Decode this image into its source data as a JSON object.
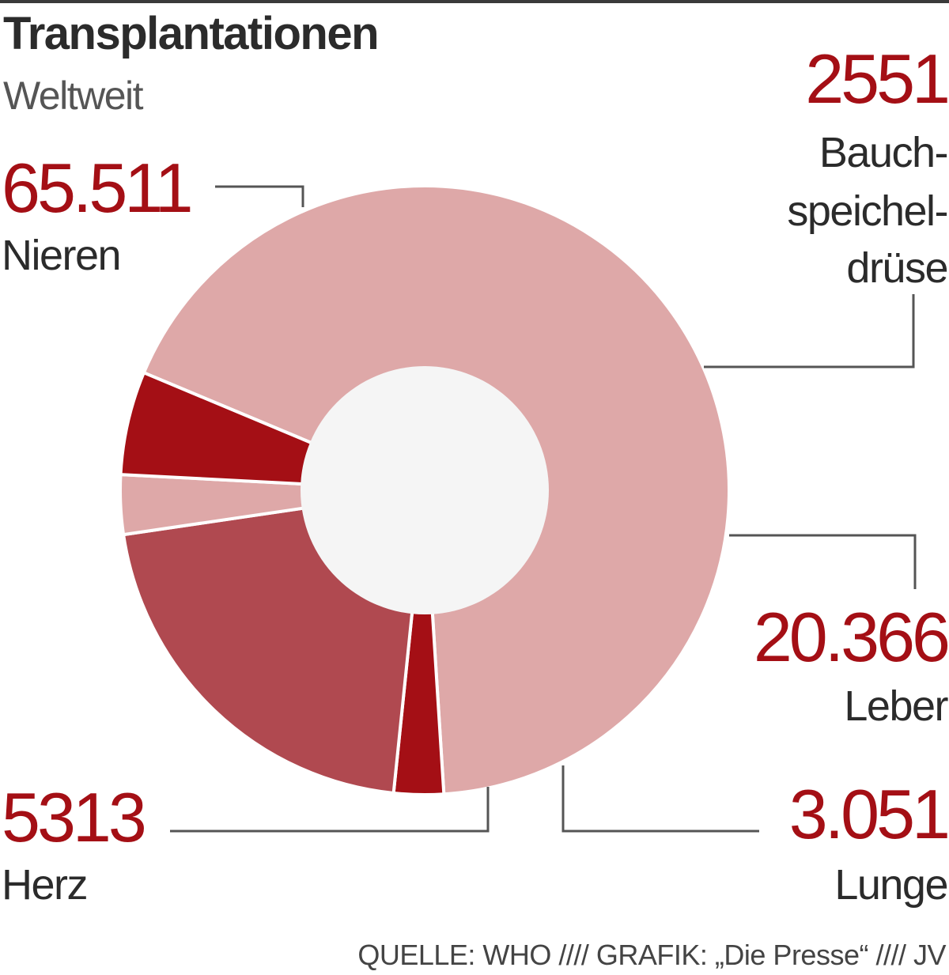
{
  "chart_data": {
    "type": "pie",
    "variant": "donut",
    "title": "Transplantationen",
    "subtitle": "Weltweit",
    "slices": [
      {
        "label": "Nieren",
        "value": 65511,
        "value_text": "65.511",
        "color": "#dea8a8"
      },
      {
        "label": "Bauch-speichel-drüse",
        "value": 2551,
        "value_text": "2551",
        "color": "#a40f15"
      },
      {
        "label": "Leber",
        "value": 20366,
        "value_text": "20.366",
        "color": "#b04950"
      },
      {
        "label": "Lunge",
        "value": 3051,
        "value_text": "3.051",
        "color": "#dea8a8"
      },
      {
        "label": "Herz",
        "value": 5313,
        "value_text": "5313",
        "color": "#a40f15"
      }
    ],
    "center_color": "#f5f5f5",
    "legend": "none"
  },
  "labels": {
    "nieren": {
      "value": "65.511",
      "name": "Nieren"
    },
    "bauch": {
      "value": "2551",
      "name_lines": [
        "Bauch-",
        "speichel-",
        "drüse"
      ]
    },
    "leber": {
      "value": "20.366",
      "name": "Leber"
    },
    "lunge": {
      "value": "3.051",
      "name": "Lunge"
    },
    "herz": {
      "value": "5313",
      "name": "Herz"
    }
  },
  "footer": "QUELLE: WHO  ////  GRAFIK: „Die Presse“  ////  JV"
}
